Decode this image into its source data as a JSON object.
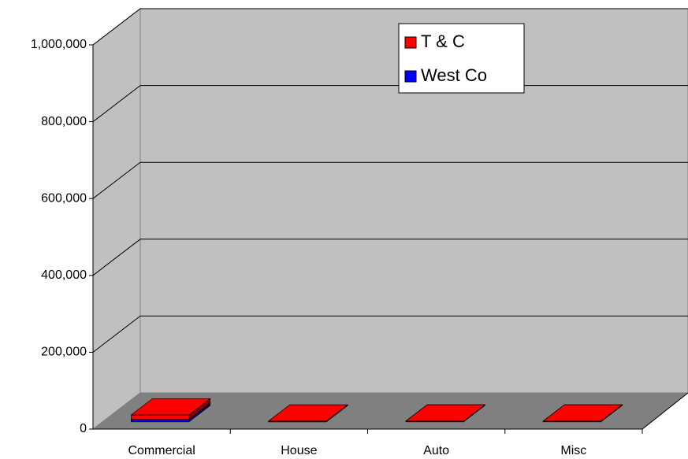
{
  "chart_data": {
    "type": "bar3d_stacked",
    "categories": [
      "Commercial",
      "House",
      "Auto",
      "Misc"
    ],
    "series": [
      {
        "name": "T & C",
        "color": "#ff0000",
        "values": [
          12000,
          2000,
          0,
          0
        ]
      },
      {
        "name": "West Co",
        "color": "#0000ff",
        "values": [
          6000,
          0,
          2000,
          2000
        ]
      }
    ],
    "stack_order": [
      "West Co",
      "T & C"
    ],
    "ylim": [
      0,
      1000000
    ],
    "yticks": [
      0,
      {
        "value": 200000,
        "label": "200,000"
      },
      {
        "value": 400000,
        "label": "400,000"
      },
      {
        "value": 600000,
        "label": "600,000"
      },
      {
        "value": 800000,
        "label": "800,000"
      },
      {
        "value": 1000000,
        "label": "1,000,000"
      }
    ],
    "grid": true,
    "legend": "top-right"
  }
}
